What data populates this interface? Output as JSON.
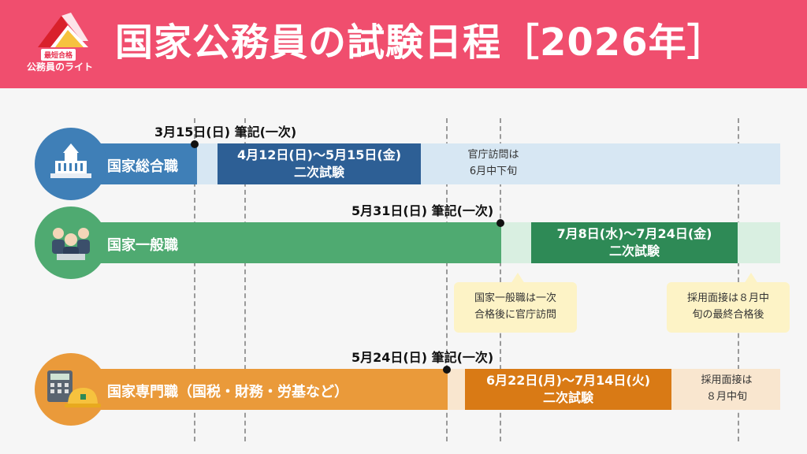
{
  "header": {
    "title": "国家公務員の試験日程［2026年］",
    "logo_tag": "最短合格",
    "logo_name": "公務員のライト"
  },
  "colors": {
    "header_bg": "#f04e6e",
    "sogo_main": "#3f7fb7",
    "sogo_dark": "#2d5f95",
    "sogo_light": "#d7e7f3",
    "ippan_main": "#4faa71",
    "ippan_dark": "#2e8a56",
    "ippan_light": "#d9efe1",
    "senmon_main": "#ea9a3a",
    "senmon_dark": "#d97a15",
    "senmon_light": "#f9e6cf",
    "callout_bg": "#fdf3c6"
  },
  "rows": {
    "sogo": {
      "icon": "parliament-building-icon",
      "label": "国家総合職",
      "milestone": "3月15日(日) 筆記(一次)",
      "second_line1": "4月12日(日)～5月15日(金)",
      "second_line2": "二次試験",
      "note_line1": "官庁訪問は",
      "note_line2": "6月中下旬"
    },
    "ippan": {
      "icon": "office-workers-icon",
      "label": "国家一般職",
      "milestone": "5月31日(日) 筆記(一次)",
      "second_line1": "7月8日(水)～7月24日(金)",
      "second_line2": "二次試験",
      "callout1_line1": "国家一般職は一次",
      "callout1_line2": "合格後に官庁訪問",
      "callout2_line1": "採用面接は８月中",
      "callout2_line2": "旬の最終合格後"
    },
    "senmon": {
      "icon": "calculator-helmet-icon",
      "label": "国家専門職（国税・財務・労基など）",
      "milestone": "5月24日(日) 筆記(一次)",
      "second_line1": "6月22日(月)～7月14日(火)",
      "second_line2": "二次試験",
      "note_line1": "採用面接は",
      "note_line2": "８月中旬"
    }
  }
}
